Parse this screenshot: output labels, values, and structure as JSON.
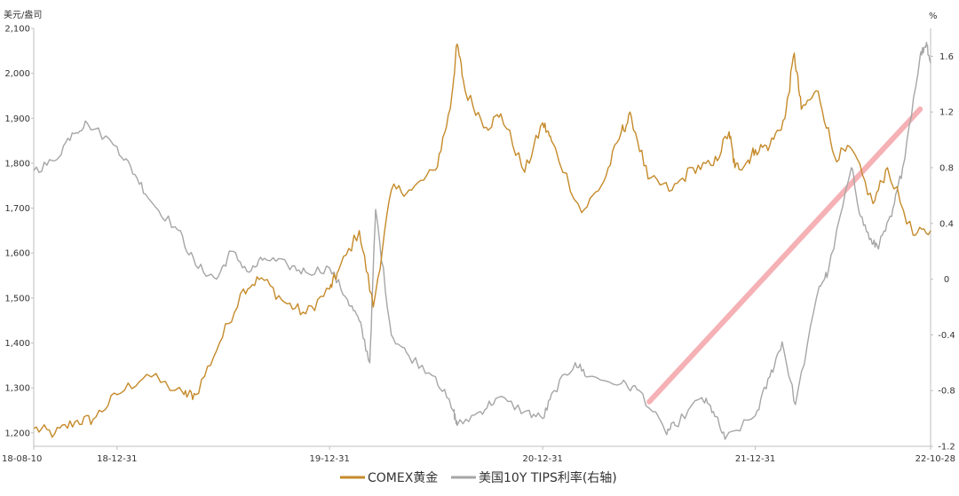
{
  "chart_data": {
    "type": "line",
    "y_left_unit": "美元/盎司",
    "y_right_unit": "%",
    "y_left_ticks": [
      "1,200",
      "1,300",
      "1,400",
      "1,500",
      "1,600",
      "1,700",
      "1,800",
      "1,900",
      "2,000",
      "2,100"
    ],
    "y_right_ticks": [
      "-1.2",
      "-0.8",
      "-0.4",
      "0",
      "0.4",
      "0.8",
      "1.2",
      "1.6"
    ],
    "x_ticks": [
      {
        "label": "18-08-10",
        "date": "2018-08-10"
      },
      {
        "label": "18-12-31",
        "date": "2018-12-31"
      },
      {
        "label": "19-12-31",
        "date": "2019-12-31"
      },
      {
        "label": "20-12-31",
        "date": "2020-12-31"
      },
      {
        "label": "21-12-31",
        "date": "2021-12-31"
      },
      {
        "label": "22-10-28",
        "date": "2022-10-28"
      }
    ],
    "ylim_left": [
      1170,
      2100
    ],
    "ylim_right": [
      -1.2,
      1.8
    ],
    "xlim": [
      "2018-08-10",
      "2022-10-28"
    ],
    "legend_position": "bottom-center",
    "colors": {
      "gold": "#C58A2A",
      "tips": "#A6A6A6",
      "trend": "#F4A9AE",
      "axis": "#BFBFBF"
    },
    "series": [
      {
        "name": "COMEX黄金",
        "axis": "left",
        "color": "#C58A2A",
        "x": [
          "2018-08-10",
          "2018-09-15",
          "2018-10-20",
          "2018-11-20",
          "2018-12-31",
          "2019-02-20",
          "2019-04-25",
          "2019-05-15",
          "2019-06-25",
          "2019-08-05",
          "2019-09-05",
          "2019-10-15",
          "2019-11-20",
          "2019-12-31",
          "2020-01-15",
          "2020-02-20",
          "2020-03-15",
          "2020-04-15",
          "2020-05-20",
          "2020-06-30",
          "2020-07-25",
          "2020-08-06",
          "2020-08-20",
          "2020-09-25",
          "2020-10-20",
          "2020-11-30",
          "2020-12-31",
          "2021-01-15",
          "2021-03-08",
          "2021-04-15",
          "2021-05-15",
          "2021-06-01",
          "2021-06-30",
          "2021-08-10",
          "2021-09-15",
          "2021-10-20",
          "2021-11-16",
          "2021-11-26",
          "2021-12-15",
          "2021-12-31",
          "2022-01-25",
          "2022-02-20",
          "2022-03-08",
          "2022-03-20",
          "2022-04-18",
          "2022-05-16",
          "2022-06-15",
          "2022-07-21",
          "2022-08-15",
          "2022-09-28",
          "2022-10-28"
        ],
        "values": [
          1210,
          1198,
          1225,
          1230,
          1285,
          1330,
          1285,
          1285,
          1400,
          1520,
          1545,
          1490,
          1465,
          1520,
          1560,
          1650,
          1480,
          1740,
          1740,
          1785,
          1920,
          2065,
          1960,
          1880,
          1910,
          1780,
          1890,
          1850,
          1690,
          1760,
          1870,
          1905,
          1765,
          1740,
          1790,
          1795,
          1870,
          1790,
          1800,
          1830,
          1840,
          1900,
          2045,
          1920,
          1960,
          1815,
          1830,
          1710,
          1790,
          1640,
          1650
        ]
      },
      {
        "name": "美国10Y TIPS利率(右轴)",
        "axis": "right",
        "color": "#A6A6A6",
        "x": [
          "2018-08-10",
          "2018-09-15",
          "2018-10-15",
          "2018-11-10",
          "2018-12-31",
          "2019-01-31",
          "2019-03-01",
          "2019-04-15",
          "2019-05-15",
          "2019-06-20",
          "2019-07-15",
          "2019-08-15",
          "2019-09-10",
          "2019-10-20",
          "2019-11-20",
          "2019-12-31",
          "2020-01-31",
          "2020-02-20",
          "2020-03-09",
          "2020-03-19",
          "2020-04-15",
          "2020-05-15",
          "2020-06-30",
          "2020-07-31",
          "2020-08-06",
          "2020-09-15",
          "2020-10-15",
          "2020-11-30",
          "2020-12-31",
          "2021-01-20",
          "2021-02-25",
          "2021-03-19",
          "2021-05-15",
          "2021-06-15",
          "2021-07-30",
          "2021-08-15",
          "2021-09-30",
          "2021-10-20",
          "2021-11-09",
          "2021-12-31",
          "2022-01-25",
          "2022-02-15",
          "2022-03-10",
          "2022-04-20",
          "2022-05-05",
          "2022-06-14",
          "2022-06-30",
          "2022-07-20",
          "2022-08-01",
          "2022-08-22",
          "2022-09-10",
          "2022-10-10",
          "2022-10-21",
          "2022-10-28"
        ],
        "values": [
          0.78,
          0.85,
          1.05,
          1.12,
          0.95,
          0.75,
          0.55,
          0.35,
          0.1,
          0.0,
          0.2,
          0.05,
          0.15,
          0.1,
          0.05,
          0.08,
          -0.15,
          -0.3,
          -0.6,
          0.5,
          -0.4,
          -0.55,
          -0.7,
          -0.95,
          -1.05,
          -0.95,
          -0.85,
          -0.95,
          -1.0,
          -0.8,
          -0.6,
          -0.7,
          -0.75,
          -0.8,
          -1.1,
          -1.05,
          -0.85,
          -0.95,
          -1.15,
          -0.98,
          -0.7,
          -0.45,
          -0.9,
          -0.05,
          0.05,
          0.8,
          0.45,
          0.25,
          0.25,
          0.45,
          0.8,
          1.6,
          1.7,
          1.55
        ]
      }
    ],
    "annotation": {
      "type": "trend-arrow",
      "x": [
        "2021-07-02",
        "2022-10-10"
      ],
      "values_right": [
        -0.88,
        1.22
      ]
    }
  }
}
